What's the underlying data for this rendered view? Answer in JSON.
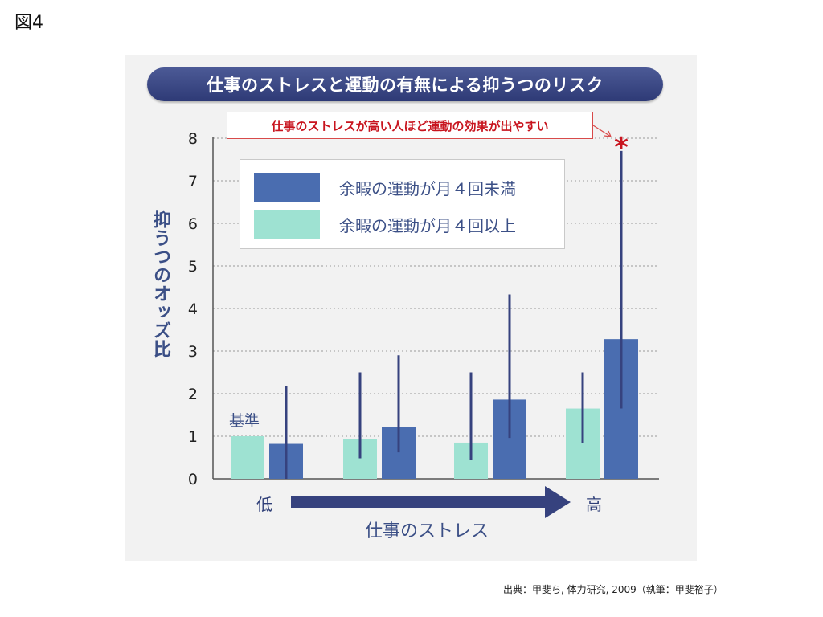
{
  "figure_label": "図4",
  "chart_data": {
    "type": "bar",
    "title": "仕事のストレスと運動の有無による抑うつのリスク",
    "callout": "仕事のストレスが高い人ほど運動の効果が出やすい",
    "significance_marker": "*",
    "ylabel": "抑うつのオッズ比",
    "xlabel": "仕事のストレス",
    "x_low_label": "低",
    "x_high_label": "高",
    "baseline_label": "基準",
    "ylim": [
      0,
      8
    ],
    "yticks": [
      "0",
      "1",
      "2",
      "3",
      "4",
      "5",
      "6",
      "7",
      "8"
    ],
    "grid": true,
    "series": [
      {
        "name": "余暇の運動が月４回以上",
        "color": "#9ee2d2",
        "values": [
          1.0,
          0.93,
          0.85,
          1.65
        ],
        "ci_low": [
          null,
          0.48,
          0.45,
          0.85
        ],
        "ci_high": [
          null,
          2.5,
          2.5,
          2.5
        ]
      },
      {
        "name": "余暇の運動が月４回未満",
        "color": "#4a6db0",
        "values": [
          0.82,
          1.22,
          1.86,
          3.28
        ],
        "ci_low": [
          0.0,
          0.62,
          0.96,
          1.65
        ],
        "ci_high": [
          2.18,
          2.9,
          4.33,
          7.7
        ]
      }
    ],
    "legend_order": [
      "余暇の運動が月４回未満",
      "余暇の運動が月４回以上"
    ]
  },
  "colors": {
    "title_bar": "#36427e",
    "axis": "#3b4f86",
    "error_bar": "#36427e",
    "accent_red": "#c8141e",
    "panel_bg": "#f2f2f2"
  },
  "source": "出典：甲斐ら, 体力研究, 2009（執筆：甲斐裕子）"
}
